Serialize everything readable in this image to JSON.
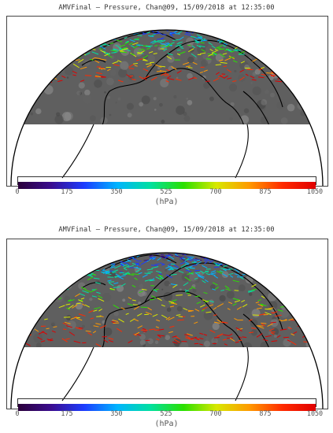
{
  "panels": [
    {
      "title": "AMVFinal – Pressure, Chan@09, 15/09/2018 at 12:35:00",
      "colorbar": {
        "ticks": [
          "0",
          "175",
          "350",
          "525",
          "700",
          "875",
          "1050"
        ],
        "unit": "(hPa)"
      },
      "vector_density": "northern-only"
    },
    {
      "title": "AMVFinal – Pressure, Chan@09, 15/09/2018 at 12:35:00",
      "colorbar": {
        "ticks": [
          "0",
          "175",
          "350",
          "525",
          "700",
          "875",
          "1050"
        ],
        "unit": "(hPa)"
      },
      "vector_density": "extended-south"
    }
  ],
  "colorscale": [
    "#2b003a",
    "#3a0c8f",
    "#1c3cff",
    "#00b4ff",
    "#00e0a0",
    "#2ae000",
    "#d8e800",
    "#ff9900",
    "#ff2a00",
    "#e00000"
  ],
  "background": {
    "satellite": "#5f5f5f",
    "space": "#ffffff",
    "coast": "#000000"
  }
}
